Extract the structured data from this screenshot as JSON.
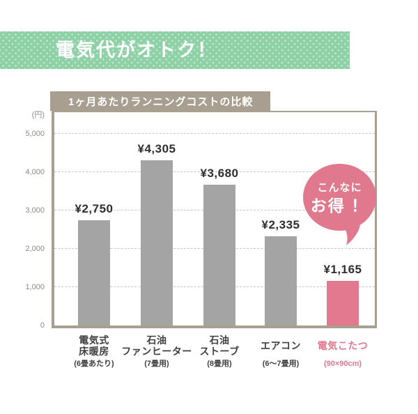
{
  "banner": {
    "label": "電気代がオトク！",
    "bg_color": "#8ed1a7",
    "text_color": "#ffffff",
    "pattern": "white polka dots"
  },
  "chart": {
    "title": "1ヶ月あたりランニングコストの比較",
    "title_bg_color": "#a89f90",
    "unit_label": "(円)",
    "axis_color": "#a89f90",
    "grid_color": "#c7c7c7"
  },
  "chart_data": {
    "type": "bar",
    "title": "1ヶ月あたりランニングコストの比較",
    "ylabel": "(円)",
    "ylim": [
      0,
      5500
    ],
    "ytick_values": [
      0,
      1000,
      2000,
      3000,
      4000,
      5000
    ],
    "ytick_labels": [
      "0",
      "1,000",
      "2,000",
      "3,000",
      "4,000",
      "5,000"
    ],
    "grid": "horizontal dashed",
    "legend": "none",
    "bars": [
      {
        "category_lines": [
          "電気式",
          "床暖房"
        ],
        "subcategory": "(6畳あたり)",
        "value": 2750,
        "value_label": "¥2,750",
        "bar_color": "#a4a4a4",
        "category_color": "#3f3f3f"
      },
      {
        "category_lines": [
          "石油",
          "ファンヒーター"
        ],
        "subcategory": "(7畳用)",
        "value": 4305,
        "value_label": "¥4,305",
        "bar_color": "#a4a4a4",
        "category_color": "#3f3f3f"
      },
      {
        "category_lines": [
          "石油",
          "ストーブ"
        ],
        "subcategory": "(8畳用)",
        "value": 3680,
        "value_label": "¥3,680",
        "bar_color": "#a4a4a4",
        "category_color": "#3f3f3f"
      },
      {
        "category_lines": [
          "エアコン"
        ],
        "subcategory": "(6～7畳用)",
        "value": 2335,
        "value_label": "¥2,335",
        "bar_color": "#a4a4a4",
        "category_color": "#3f3f3f"
      },
      {
        "category_lines": [
          "電気こたつ"
        ],
        "subcategory": "(90×90cm)",
        "value": 1165,
        "value_label": "¥1,165",
        "bar_color": "#e3798f",
        "category_color": "#e0798f"
      }
    ]
  },
  "bubble": {
    "line1": "こんなに",
    "line2": "お得 ！",
    "bg_color": "#e0798e",
    "text_color": "#ffffff"
  }
}
